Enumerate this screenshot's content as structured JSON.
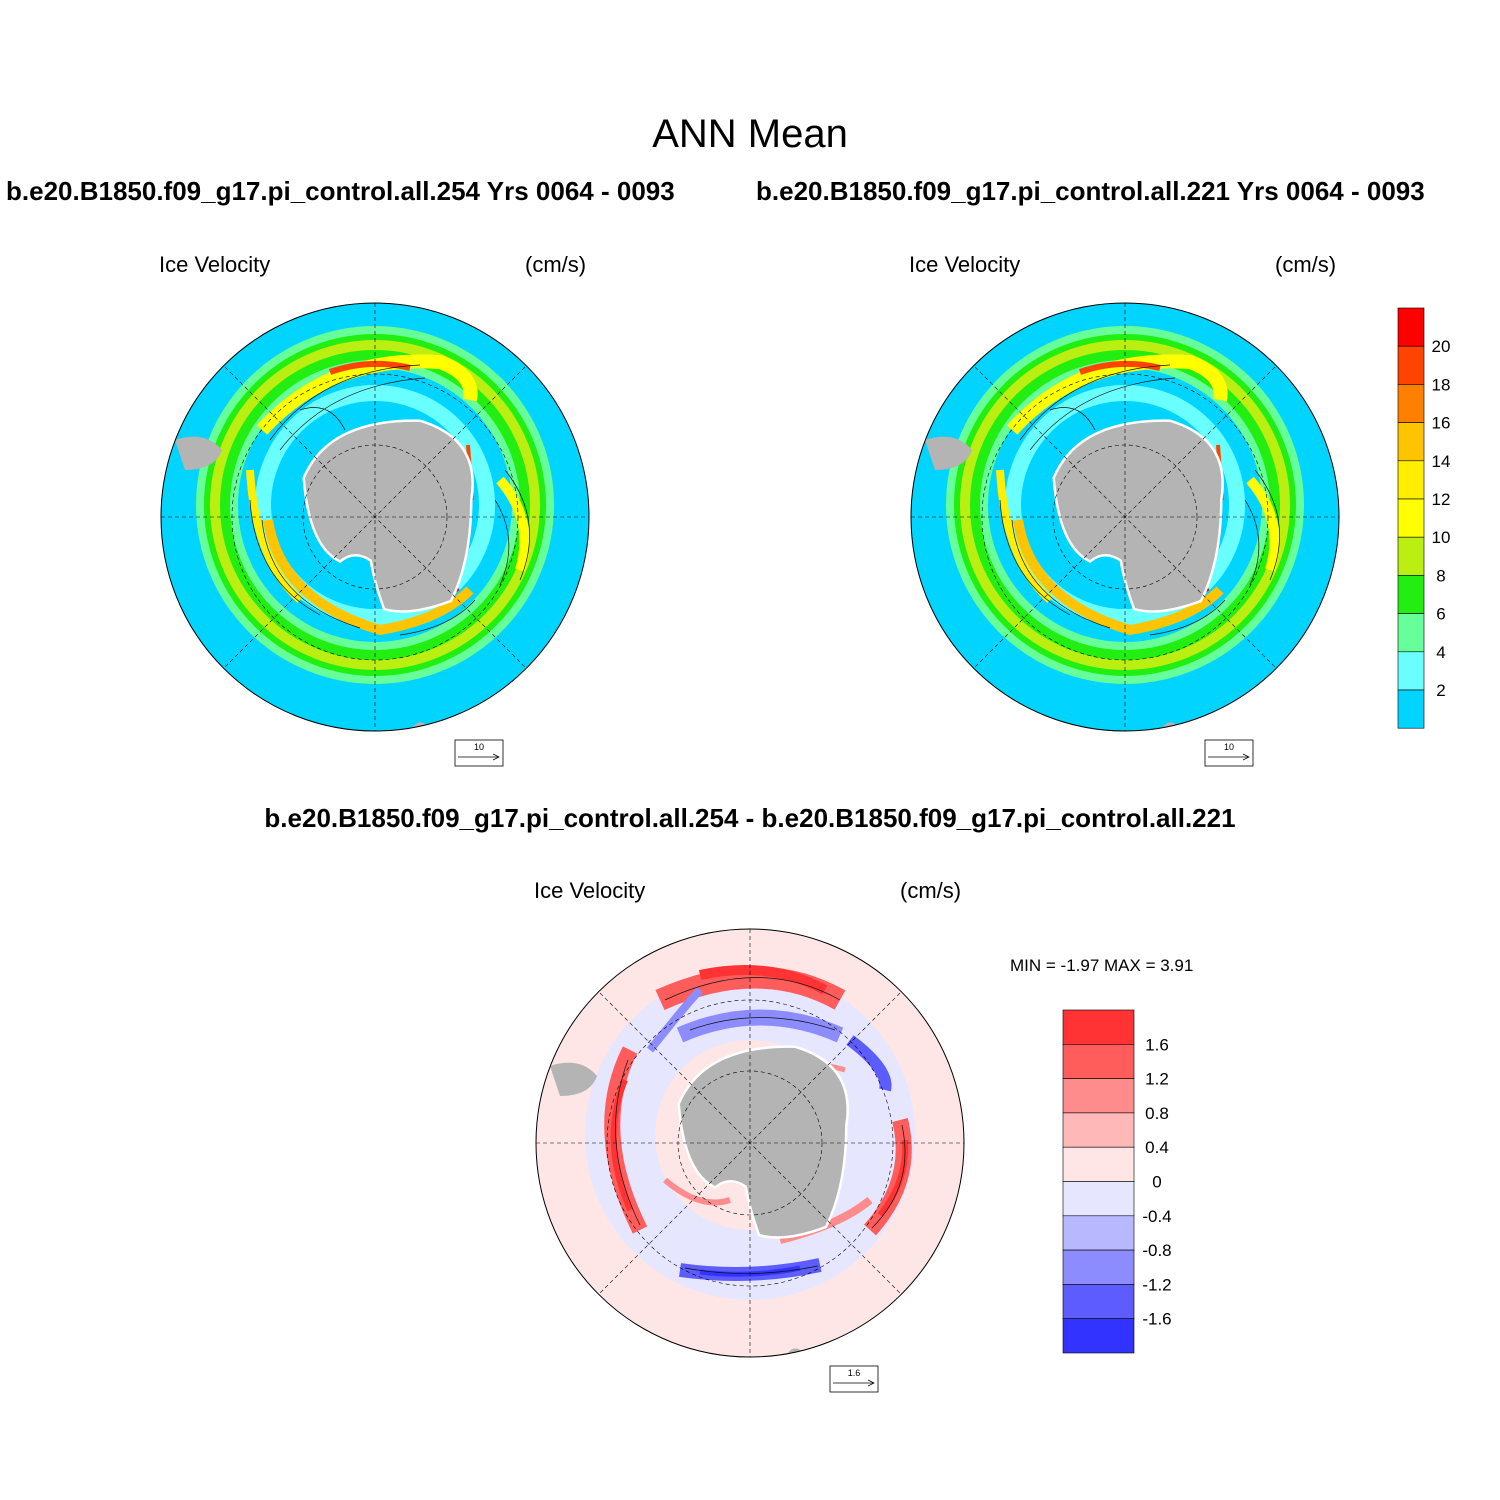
{
  "figure": {
    "title": "ANN Mean",
    "left_case_title": "b.e20.B1850.f09_g17.pi_control.all.254  Yrs 0064 - 0093",
    "right_case_title": "b.e20.B1850.f09_g17.pi_control.all.221  Yrs 0064 - 0093",
    "diff_title": "b.e20.B1850.f09_g17.pi_control.all.254 - b.e20.B1850.f09_g17.pi_control.all.221"
  },
  "panels": [
    {
      "id": "case-254",
      "variable": "Ice Velocity",
      "units": "(cm/s)",
      "ref_vector": "10",
      "scheme": "speed"
    },
    {
      "id": "case-221",
      "variable": "Ice Velocity",
      "units": "(cm/s)",
      "ref_vector": "10",
      "scheme": "speed"
    },
    {
      "id": "difference",
      "variable": "Ice Velocity",
      "units": "(cm/s)",
      "ref_vector": "1.6",
      "scheme": "diff",
      "stats": "MIN =  -1.97 MAX =   3.91"
    }
  ],
  "colorbars": {
    "speed": {
      "labels": [
        "2",
        "4",
        "6",
        "8",
        "10",
        "12",
        "14",
        "16",
        "18",
        "20"
      ],
      "colors": [
        "#00d4ff",
        "#6affff",
        "#66ff99",
        "#22ee11",
        "#bbee11",
        "#ffff00",
        "#ffee00",
        "#ffc400",
        "#ff8000",
        "#ff4400",
        "#ff0000"
      ]
    },
    "diff": {
      "labels": [
        "1.6",
        "1.2",
        "0.8",
        "0.4",
        "0",
        "-0.4",
        "-0.8",
        "-1.2",
        "-1.6"
      ],
      "colors": [
        "#ff3333",
        "#ff5c5c",
        "#ff8c8c",
        "#ffb8b8",
        "#ffe6e6",
        "#e6e6ff",
        "#b8b8ff",
        "#8c8cff",
        "#5c5cff",
        "#3333ff"
      ]
    }
  },
  "colors": {
    "land": "#b4b4b4",
    "speed_background": "#00d4ff",
    "diff_background": "#ffe6e6"
  }
}
